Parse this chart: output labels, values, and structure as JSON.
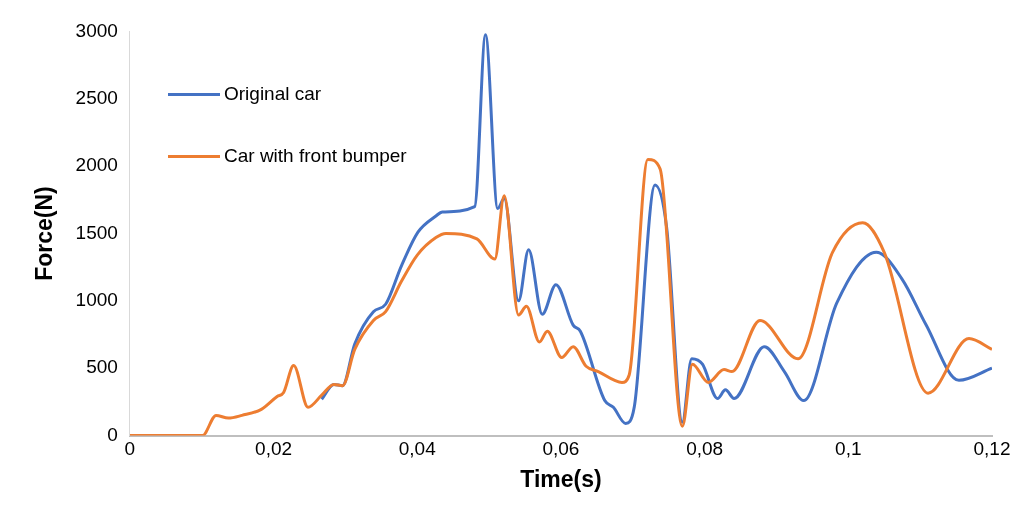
{
  "chart_data": {
    "type": "line",
    "xlabel": "Time(s)",
    "ylabel": "Force(N)",
    "xlim": [
      0,
      0.12
    ],
    "xticks": [
      0,
      {
        "value": 0.02,
        "label": "0,02"
      },
      {
        "value": 0.04,
        "label": "0,04"
      },
      {
        "value": 0.06,
        "label": "0,06"
      },
      {
        "value": 0.08,
        "label": "0,08"
      },
      {
        "value": 0.1,
        "label": "0,1"
      },
      {
        "value": 0.12,
        "label": "0,12"
      }
    ],
    "ylim": [
      0,
      3000
    ],
    "yticks": [
      0,
      500,
      1000,
      1500,
      2000,
      2500,
      3000
    ],
    "grid": false,
    "legend": "top left",
    "marker": "none",
    "line_style": "solid",
    "series": [
      {
        "name": "Original car",
        "color": "#4472c4",
        "x": [
          0.0267,
          0.0284,
          0.0296,
          0.0313,
          0.0339,
          0.0356,
          0.0378,
          0.0401,
          0.0426,
          0.0435,
          0.048,
          0.0495,
          0.0512,
          0.0521,
          0.0541,
          0.0555,
          0.0574,
          0.0593,
          0.0617,
          0.0627,
          0.0661,
          0.0673,
          0.069,
          0.0702,
          0.0731,
          0.0747,
          0.0769,
          0.0782,
          0.0797,
          0.0818,
          0.0829,
          0.0841,
          0.0883,
          0.0911,
          0.0938,
          0.0984,
          0.1039,
          0.1075,
          0.1108,
          0.1154,
          0.12
        ],
        "values": [
          270,
          380,
          370,
          680,
          920,
          975,
          1260,
          1510,
          1630,
          1660,
          1700,
          2975,
          1685,
          1760,
          1000,
          1380,
          900,
          1120,
          820,
          775,
          260,
          210,
          90,
          210,
          1860,
          1550,
          100,
          570,
          530,
          275,
          340,
          275,
          660,
          475,
          260,
          985,
          1360,
          1160,
          825,
          410,
          500
        ]
      },
      {
        "name": "Car with front bumper",
        "color": "#ed7d31",
        "x": [
          0,
          0.0101,
          0.012,
          0.0137,
          0.0156,
          0.0183,
          0.0205,
          0.0214,
          0.0228,
          0.0248,
          0.0267,
          0.0284,
          0.0296,
          0.0313,
          0.0339,
          0.0356,
          0.0378,
          0.04,
          0.0426,
          0.044,
          0.0483,
          0.0508,
          0.0521,
          0.0541,
          0.0552,
          0.057,
          0.0581,
          0.0601,
          0.0617,
          0.0635,
          0.0652,
          0.0685,
          0.0695,
          0.0721,
          0.0738,
          0.0769,
          0.0783,
          0.0805,
          0.0827,
          0.0838,
          0.0877,
          0.093,
          0.0978,
          0.102,
          0.105,
          0.1111,
          0.1168,
          0.12
        ],
        "values": [
          0,
          0,
          150,
          130,
          150,
          195,
          290,
          320,
          520,
          210,
          300,
          380,
          370,
          640,
          855,
          920,
          1145,
          1340,
          1470,
          1500,
          1460,
          1310,
          1780,
          895,
          960,
          695,
          775,
          580,
          660,
          515,
          475,
          395,
          450,
          2050,
          1980,
          70,
          530,
          395,
          490,
          475,
          855,
          570,
          1360,
          1580,
          1360,
          315,
          720,
          640
        ]
      }
    ]
  }
}
